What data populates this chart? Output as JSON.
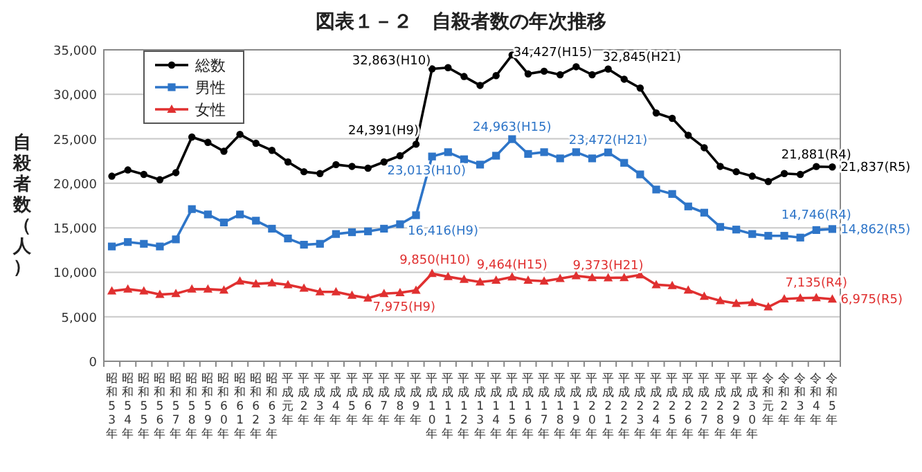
{
  "chart_data": {
    "type": "line",
    "title": "図表１－２　自殺者数の年次推移",
    "ylabel": "自殺者数（人）",
    "categories": [
      "昭和53年",
      "昭和54年",
      "昭和55年",
      "昭和56年",
      "昭和57年",
      "昭和58年",
      "昭和59年",
      "昭和60年",
      "昭和61年",
      "昭和62年",
      "昭和63年",
      "平成元年",
      "平成2年",
      "平成3年",
      "平成4年",
      "平成5年",
      "平成6年",
      "平成7年",
      "平成8年",
      "平成9年",
      "平成10年",
      "平成11年",
      "平成12年",
      "平成13年",
      "平成14年",
      "平成15年",
      "平成16年",
      "平成17年",
      "平成18年",
      "平成19年",
      "平成20年",
      "平成21年",
      "平成22年",
      "平成23年",
      "平成24年",
      "平成25年",
      "平成26年",
      "平成27年",
      "平成28年",
      "平成29年",
      "平成30年",
      "令和元年",
      "令和2年",
      "令和3年",
      "令和4年",
      "令和5年"
    ],
    "series": [
      {
        "name": "総数",
        "color": "#000000",
        "marker": "circle",
        "values": [
          20800,
          21500,
          21000,
          20400,
          21200,
          25200,
          24600,
          23600,
          25500,
          24500,
          23700,
          22400,
          21300,
          21100,
          22100,
          21900,
          21700,
          22400,
          23100,
          24391,
          32863,
          33000,
          32000,
          31000,
          32100,
          34427,
          32300,
          32600,
          32200,
          33100,
          32200,
          32845,
          31700,
          30700,
          27900,
          27300,
          25400,
          24000,
          21900,
          21300,
          20800,
          20200,
          21100,
          21000,
          21881,
          21837
        ],
        "value_labels": [
          null,
          null,
          null,
          null,
          null,
          null,
          null,
          null,
          null,
          null,
          null,
          null,
          null,
          null,
          null,
          null,
          null,
          null,
          null,
          "24,391(H9)",
          "32,863(H10)",
          null,
          null,
          null,
          null,
          "34,427(H15)",
          null,
          null,
          null,
          null,
          null,
          "32,845(H21)",
          null,
          null,
          null,
          null,
          null,
          null,
          null,
          null,
          null,
          null,
          null,
          null,
          "21,881(R4)",
          "21,837(R5)"
        ]
      },
      {
        "name": "男性",
        "color": "#2e75c8",
        "marker": "square",
        "values": [
          12900,
          13400,
          13200,
          12900,
          13700,
          17100,
          16500,
          15600,
          16500,
          15800,
          14900,
          13800,
          13100,
          13200,
          14300,
          14500,
          14600,
          14900,
          15400,
          16416,
          23013,
          23500,
          22700,
          22100,
          23100,
          24963,
          23300,
          23500,
          22800,
          23500,
          22800,
          23472,
          22300,
          21000,
          19300,
          18800,
          17400,
          16700,
          15100,
          14800,
          14300,
          14100,
          14100,
          13900,
          14746,
          14862
        ],
        "value_labels": [
          null,
          null,
          null,
          null,
          null,
          null,
          null,
          null,
          null,
          null,
          null,
          null,
          null,
          null,
          null,
          null,
          null,
          null,
          null,
          "16,416(H9)",
          "23,013(H10)",
          null,
          null,
          null,
          null,
          "24,963(H15)",
          null,
          null,
          null,
          null,
          null,
          "23,472(H21)",
          null,
          null,
          null,
          null,
          null,
          null,
          null,
          null,
          null,
          null,
          null,
          null,
          "14,746(R4)",
          "14,862(R5)"
        ]
      },
      {
        "name": "女性",
        "color": "#e03030",
        "marker": "triangle",
        "values": [
          7900,
          8100,
          7900,
          7500,
          7600,
          8100,
          8100,
          8000,
          9000,
          8700,
          8800,
          8600,
          8200,
          7800,
          7800,
          7400,
          7100,
          7600,
          7700,
          7975,
          9850,
          9500,
          9200,
          8900,
          9100,
          9464,
          9100,
          9000,
          9300,
          9600,
          9400,
          9373,
          9400,
          9700,
          8600,
          8500,
          8000,
          7300,
          6800,
          6500,
          6600,
          6100,
          7000,
          7100,
          7135,
          6975
        ],
        "value_labels": [
          null,
          null,
          null,
          null,
          null,
          null,
          null,
          null,
          null,
          null,
          null,
          null,
          null,
          null,
          null,
          null,
          null,
          null,
          null,
          "7,975(H9)",
          "9,850(H10)",
          null,
          null,
          null,
          null,
          "9,464(H15)",
          null,
          null,
          null,
          null,
          null,
          "9,373(H21)",
          null,
          null,
          null,
          null,
          null,
          null,
          null,
          null,
          null,
          null,
          null,
          null,
          "7,135(R4)",
          "6,975(R5)"
        ]
      }
    ],
    "ylim": [
      0,
      35000
    ],
    "yticks": [
      0,
      {
        "value": 5000,
        "label": "5,000"
      },
      {
        "value": 10000,
        "label": "10,000"
      },
      {
        "value": 15000,
        "label": "15,000"
      },
      {
        "value": 20000,
        "label": "20,000"
      },
      {
        "value": 25000,
        "label": "25,000"
      },
      {
        "value": 30000,
        "label": "30,000"
      },
      {
        "value": 35000,
        "label": "35,000"
      }
    ],
    "grid": "y",
    "legend": "top left",
    "line_style": "solid"
  }
}
